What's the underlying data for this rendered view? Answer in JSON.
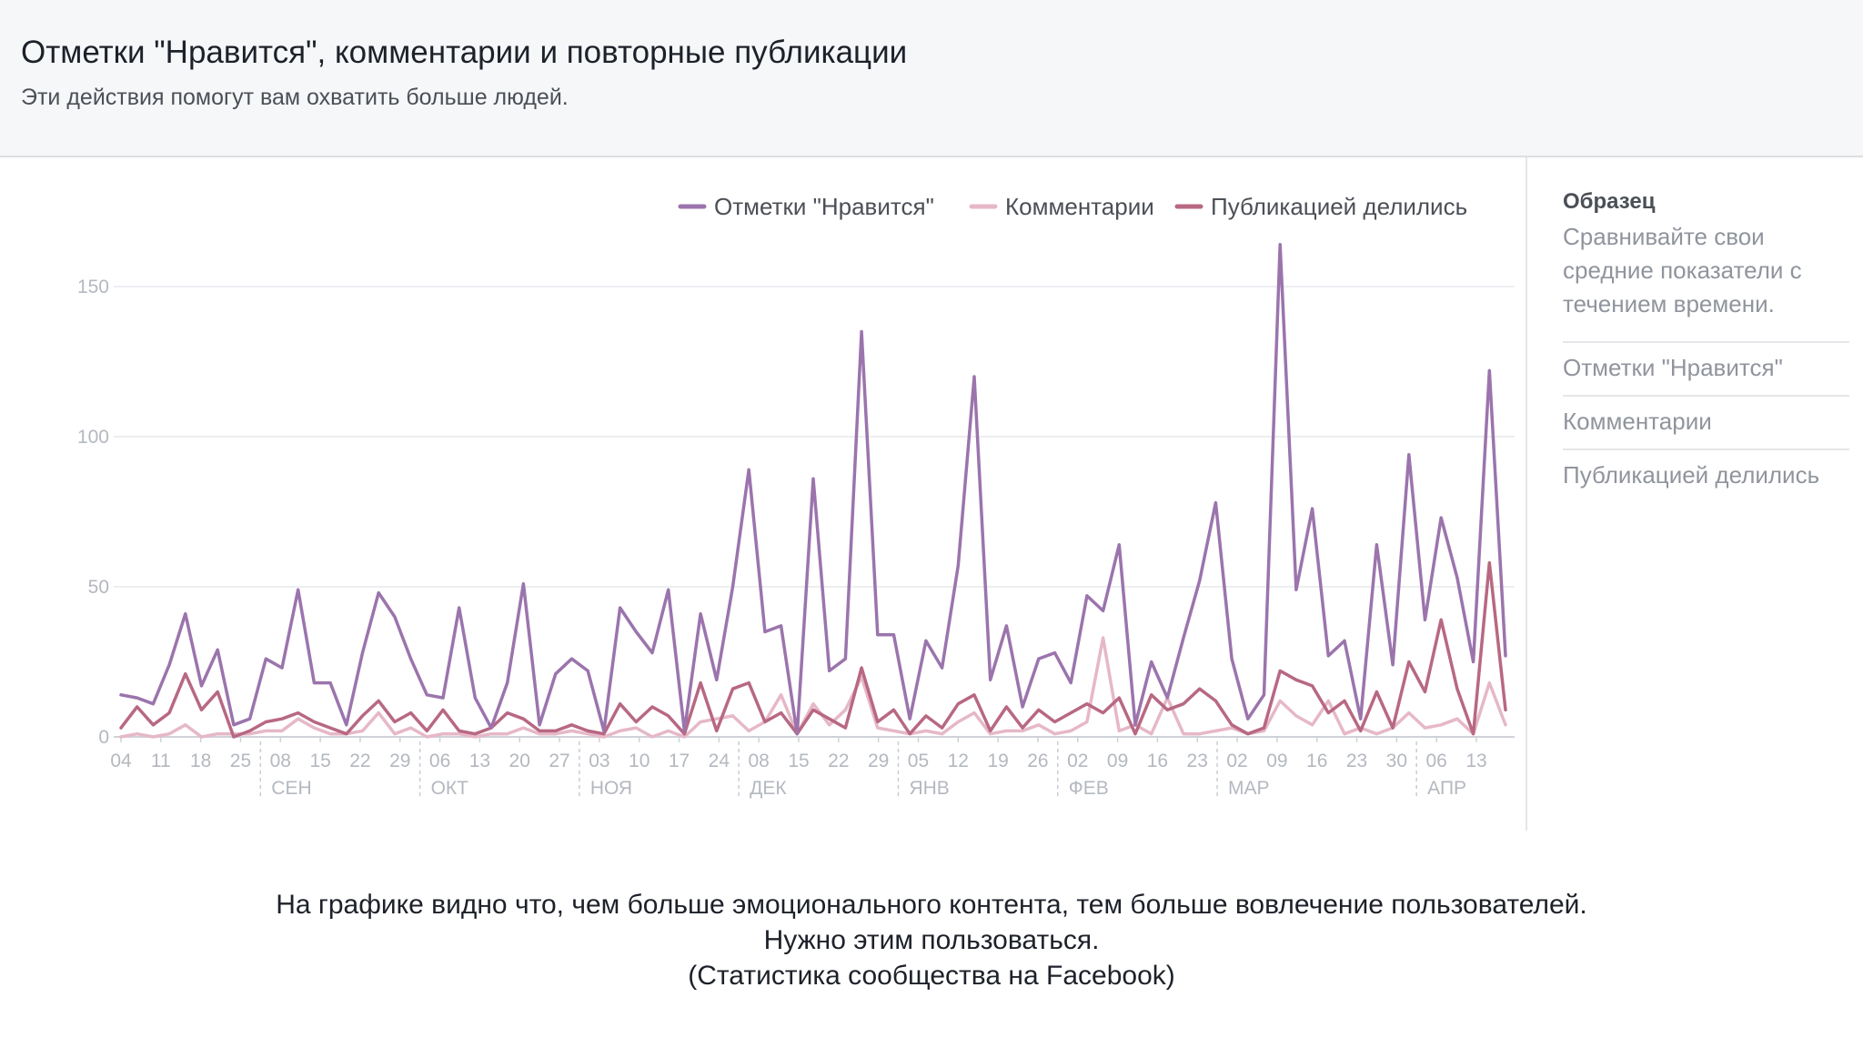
{
  "header": {
    "title": "Отметки \"Нравится\", комментарии и повторные публикации",
    "subtitle": "Эти действия помогут вам охватить больше людей."
  },
  "sidebar": {
    "title": "Образец",
    "description": "Сравнивайте свои средние показатели с течением времени.",
    "items": [
      "Отметки \"Нравится\"",
      "Комментарии",
      "Публикацией делились"
    ]
  },
  "caption": {
    "line1": "На графике видно что, чем больше эмоционального контента, тем больше вовлечение пользователей.",
    "line2": "Нужно этим пользоваться.",
    "line3": "(Статистика сообщества на Facebook)"
  },
  "chart_data": {
    "type": "line",
    "ylim": [
      0,
      160
    ],
    "yticks": [
      0,
      50,
      100,
      150
    ],
    "grid": true,
    "legend_position": "top-right",
    "x_tick_labels": [
      "04",
      "11",
      "18",
      "25",
      "08",
      "15",
      "22",
      "29",
      "06",
      "13",
      "20",
      "27",
      "03",
      "10",
      "17",
      "24",
      "08",
      "15",
      "22",
      "29",
      "05",
      "12",
      "19",
      "26",
      "02",
      "09",
      "16",
      "23",
      "02",
      "09",
      "16",
      "23",
      "30",
      "06",
      "13"
    ],
    "month_labels": [
      "СЕН",
      "ОКТ",
      "НОЯ",
      "ДЕК",
      "ЯНВ",
      "ФЕВ",
      "МАР",
      "АПР"
    ],
    "month_start_index": [
      4,
      8,
      12,
      16,
      20,
      24,
      28,
      33
    ],
    "series": [
      {
        "name": "Отметки \"Нравится\"",
        "color": "#9b74ad",
        "values": [
          14,
          13,
          11,
          24,
          41,
          17,
          29,
          4,
          6,
          26,
          23,
          49,
          18,
          18,
          4,
          28,
          48,
          40,
          26,
          14,
          13,
          43,
          13,
          3,
          18,
          51,
          4,
          21,
          26,
          22,
          2,
          43,
          35,
          28,
          49,
          2,
          41,
          19,
          50,
          89,
          35,
          37,
          1,
          86,
          22,
          26,
          135,
          34,
          34,
          6,
          32,
          23,
          57,
          120,
          19,
          37,
          10,
          26,
          28,
          18,
          47,
          42,
          64,
          4,
          25,
          13,
          33,
          52,
          78,
          26,
          6,
          14,
          164,
          49,
          76,
          27,
          32,
          6,
          64,
          24,
          94,
          39,
          73,
          53,
          25,
          122,
          27
        ]
      },
      {
        "name": "Комментарии",
        "color": "#e6b8c7",
        "values": [
          0,
          1,
          0,
          1,
          4,
          0,
          1,
          1,
          1,
          2,
          2,
          6,
          3,
          1,
          1,
          2,
          8,
          1,
          3,
          0,
          1,
          1,
          0,
          1,
          1,
          3,
          1,
          1,
          2,
          1,
          0,
          2,
          3,
          0,
          2,
          0,
          5,
          6,
          7,
          2,
          5,
          14,
          1,
          11,
          4,
          9,
          20,
          3,
          2,
          1,
          2,
          1,
          5,
          8,
          1,
          2,
          2,
          4,
          1,
          2,
          5,
          33,
          2,
          4,
          1,
          13,
          1,
          1,
          2,
          3,
          1,
          2,
          12,
          7,
          4,
          12,
          1,
          3,
          1,
          3,
          8,
          3,
          4,
          6,
          1,
          18,
          4
        ]
      },
      {
        "name": "Публикацией делились",
        "color": "#b86882",
        "values": [
          3,
          10,
          4,
          8,
          21,
          9,
          15,
          0,
          2,
          5,
          6,
          8,
          5,
          3,
          1,
          7,
          12,
          5,
          8,
          2,
          9,
          2,
          1,
          3,
          8,
          6,
          2,
          2,
          4,
          2,
          1,
          11,
          5,
          10,
          7,
          1,
          18,
          2,
          16,
          18,
          5,
          8,
          1,
          9,
          6,
          3,
          23,
          5,
          9,
          1,
          7,
          3,
          11,
          14,
          2,
          10,
          3,
          9,
          5,
          8,
          11,
          8,
          13,
          1,
          14,
          9,
          11,
          16,
          12,
          4,
          1,
          3,
          22,
          19,
          17,
          8,
          12,
          2,
          15,
          3,
          25,
          15,
          39,
          16,
          1,
          58,
          9
        ]
      }
    ]
  }
}
